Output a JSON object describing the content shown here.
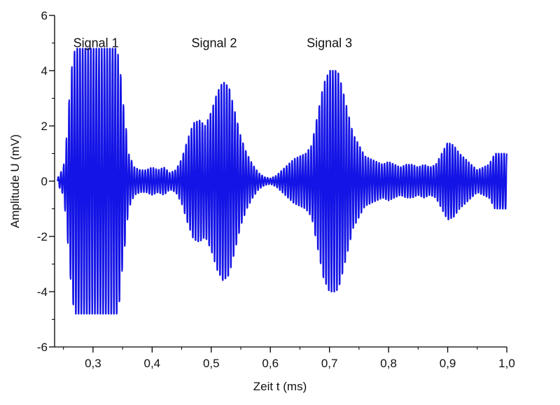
{
  "chart_data": {
    "type": "line",
    "xlabel": "Zeit t (ms)",
    "ylabel": "Amplitude U (mV)",
    "xlim": [
      0.235,
      1.0
    ],
    "ylim": [
      -6,
      6
    ],
    "x_ticks": [
      0.3,
      0.4,
      0.5,
      0.6,
      0.7,
      0.8,
      0.9,
      1.0
    ],
    "x_tick_labels": [
      "0,3",
      "0,4",
      "0,5",
      "0,6",
      "0,7",
      "0,8",
      "0,9",
      "1,0"
    ],
    "y_ticks": [
      -6,
      -4,
      -2,
      0,
      2,
      4,
      6
    ],
    "y_tick_labels": [
      "-6",
      "-4",
      "-2",
      "0",
      "2",
      "4",
      "6"
    ],
    "grid": false,
    "series": [
      {
        "color": "#1414e6",
        "x": [
          0.24,
          0.25,
          0.255,
          0.26,
          0.265,
          0.27,
          0.28,
          0.29,
          0.3,
          0.31,
          0.32,
          0.33,
          0.34,
          0.345,
          0.35,
          0.355,
          0.36,
          0.37,
          0.38,
          0.39,
          0.4,
          0.41,
          0.42,
          0.43,
          0.44,
          0.45,
          0.46,
          0.47,
          0.48,
          0.49,
          0.5,
          0.51,
          0.52,
          0.53,
          0.54,
          0.55,
          0.56,
          0.57,
          0.58,
          0.59,
          0.6,
          0.61,
          0.62,
          0.63,
          0.64,
          0.65,
          0.66,
          0.67,
          0.68,
          0.69,
          0.7,
          0.71,
          0.715,
          0.72,
          0.73,
          0.74,
          0.75,
          0.76,
          0.77,
          0.78,
          0.79,
          0.8,
          0.81,
          0.82,
          0.83,
          0.84,
          0.85,
          0.86,
          0.87,
          0.88,
          0.89,
          0.9,
          0.91,
          0.92,
          0.93,
          0.94,
          0.95,
          0.96,
          0.97,
          0.98,
          0.99,
          1.0
        ],
        "envelope": [
          0.1,
          0.5,
          1.5,
          3.0,
          4.3,
          4.8,
          4.8,
          4.8,
          4.8,
          4.8,
          4.8,
          4.8,
          4.8,
          4.3,
          3.0,
          2.1,
          1.0,
          0.5,
          0.4,
          0.4,
          0.5,
          0.4,
          0.5,
          0.3,
          0.4,
          0.8,
          1.5,
          2.1,
          2.2,
          2.0,
          2.5,
          3.2,
          3.6,
          3.4,
          2.5,
          1.6,
          1.0,
          0.6,
          0.3,
          0.15,
          0.1,
          0.2,
          0.4,
          0.6,
          0.8,
          0.9,
          1.0,
          1.3,
          2.4,
          3.5,
          4.0,
          4.0,
          3.9,
          3.5,
          2.6,
          1.7,
          1.3,
          0.9,
          0.8,
          0.7,
          0.6,
          0.7,
          0.6,
          0.5,
          0.6,
          0.6,
          0.5,
          0.6,
          0.5,
          0.6,
          1.0,
          1.4,
          1.3,
          1.0,
          0.8,
          0.6,
          0.4,
          0.5,
          0.6,
          1.0,
          1.0,
          1.0
        ],
        "cycle_ms": 0.0046
      }
    ],
    "annotations": [
      {
        "text": "Signal 1",
        "x": 0.305,
        "y": 5.0
      },
      {
        "text": "Signal 2",
        "x": 0.505,
        "y": 5.0
      },
      {
        "text": "Signal 3",
        "x": 0.7,
        "y": 5.0
      }
    ]
  }
}
